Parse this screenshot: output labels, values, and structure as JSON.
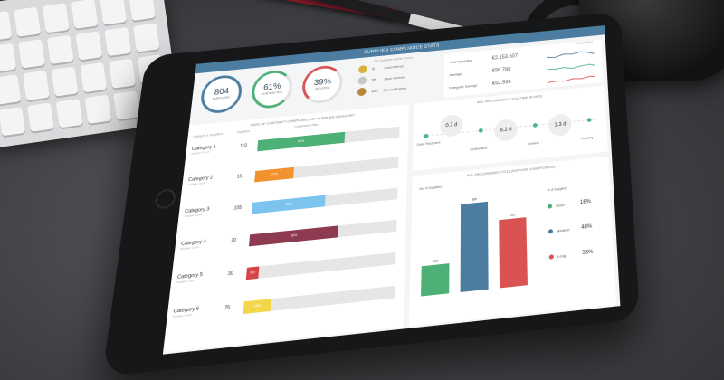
{
  "dashboard_title": "SUPPLIER COMPLIANCE STATS",
  "kpis": [
    {
      "value": "804",
      "label": "SUPPLIERS"
    },
    {
      "value": "61%",
      "label": "CONTRACTED"
    },
    {
      "value": "39%",
      "label": "UNLISTED"
    }
  ],
  "medals": {
    "caption": "Top Suppliers Partner Levels",
    "items": [
      {
        "num": "8",
        "label": "Gold Partner"
      },
      {
        "num": "55",
        "label": "Silver Partner"
      },
      {
        "num": "100",
        "label": "Bronze Partner"
      }
    ]
  },
  "spend": {
    "caption": "Versus Prior",
    "rows": [
      {
        "label": "Total Spending",
        "value": "€2.153.507"
      },
      {
        "label": "Savings",
        "value": "€56.788"
      },
      {
        "label": "Foregone Savings",
        "value": "€52.536"
      }
    ],
    "colors": [
      "#4c7da0",
      "#4db09a",
      "#d95353"
    ]
  },
  "categories_panel": {
    "title": "RATE OF CONTRACT COMPLIANCE BY SUPPLIER CATEGORY",
    "col_header": "Category & Suppliers",
    "col_header2": "Suppliers",
    "col_header3": "Compliance Rate",
    "rows": [
      {
        "name": "Category 1",
        "sub": "Supplier Count",
        "num": "110",
        "pct": 61,
        "label": "61%",
        "color": "#4db076"
      },
      {
        "name": "Category 2",
        "sub": "Supplier Count",
        "num": "15",
        "pct": 27,
        "label": "27%",
        "color": "#f0922e"
      },
      {
        "name": "Category 3",
        "sub": "Supplier Count",
        "num": "105",
        "pct": 50,
        "label": "50%",
        "color": "#7cc3ee"
      },
      {
        "name": "Category 4",
        "sub": "Supplier Count",
        "num": "20",
        "pct": 60,
        "label": "60%",
        "color": "#8e3b52"
      },
      {
        "name": "Category 5",
        "sub": "Supplier Count",
        "num": "30",
        "pct": 8,
        "label": "8%",
        "color": "#d64545"
      },
      {
        "name": "Category 6",
        "sub": "Supplier Count",
        "num": "25",
        "pct": 18,
        "label": "18%",
        "color": "#f3d74a"
      }
    ]
  },
  "cycle": {
    "title": "AVG. PROCUREMENT CYCLE TIME (IN DAYS)",
    "stages": [
      "Order Placement",
      "Confirmation",
      "Delivery",
      "Invoicing"
    ],
    "durations": [
      "0.7 d",
      "8.2 d",
      "1.3 d"
    ]
  },
  "classification": {
    "title": "AVG. PROCUREMENT CYCLE (SUPPLIER CLASSIFICATION)",
    "ylabel": "No. of Suppliers",
    "legend_title": "% of Suppliers",
    "bars": [
      {
        "name": "Short",
        "value": 130,
        "pct": "16%",
        "color": "#4db076"
      },
      {
        "name": "Medium",
        "value": 386,
        "pct": "48%",
        "color": "#4c7da0"
      },
      {
        "name": "Long",
        "value": 295,
        "pct": "36%",
        "color": "#d95353"
      }
    ]
  }
}
